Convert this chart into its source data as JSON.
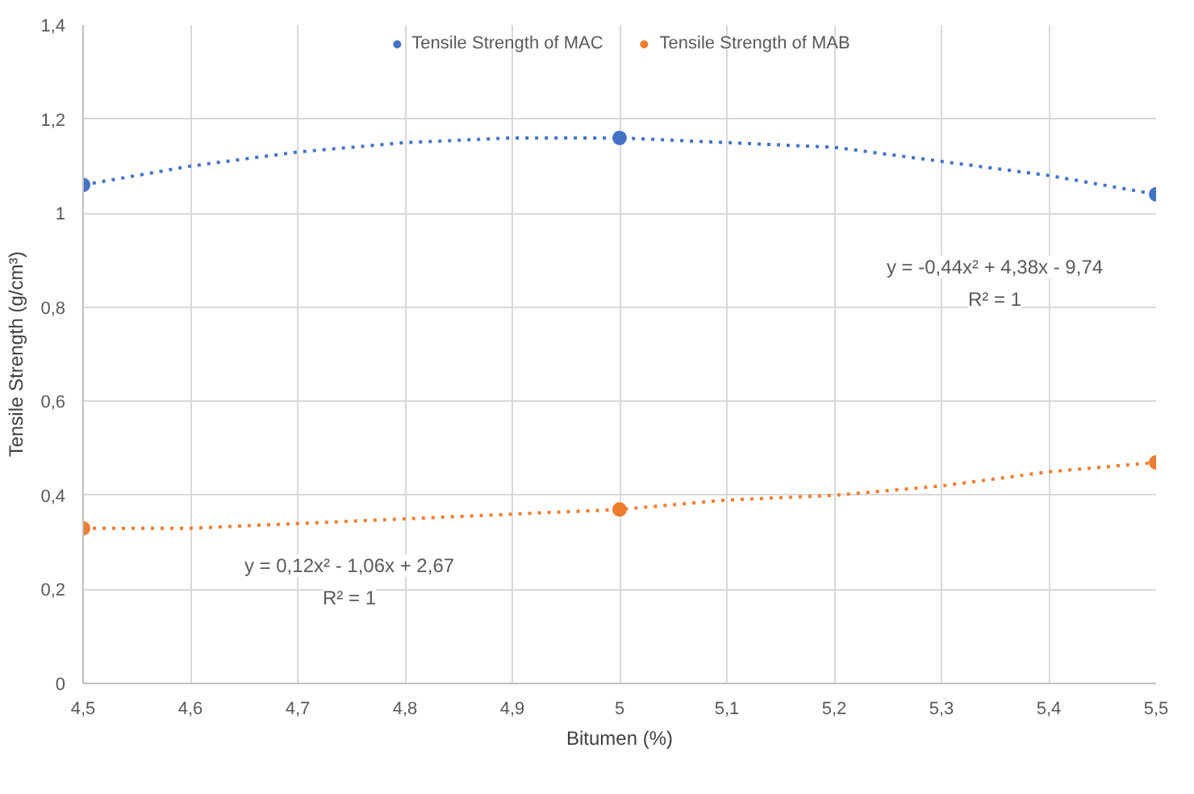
{
  "chart_data": {
    "type": "scatter",
    "xlabel": "Bitumen (%)",
    "ylabel": "Tensile Strength (g/cm³)",
    "x": [
      4.5,
      5,
      5.5
    ],
    "series": [
      {
        "name": "Tensile Strength of MAC",
        "color": "#4472c4",
        "values": [
          1.06,
          1.16,
          1.04
        ],
        "marker": "circle"
      },
      {
        "name": "Tensile Strength of MAB",
        "color": "#ed7d31",
        "values": [
          0.33,
          0.37,
          0.47
        ],
        "marker": "circle"
      },
      {
        "type": "line",
        "color": "#4472c4",
        "line_style": "dotted",
        "x": [
          4.5,
          4.6,
          4.7,
          4.8,
          4.9,
          5.0,
          5.1,
          5.2,
          5.3,
          5.4,
          5.5
        ],
        "values": [
          1.06,
          1.1,
          1.13,
          1.15,
          1.16,
          1.16,
          1.15,
          1.14,
          1.11,
          1.08,
          1.04
        ]
      },
      {
        "type": "line",
        "color": "#ed7d31",
        "line_style": "dotted",
        "x": [
          4.5,
          4.6,
          4.7,
          4.8,
          4.9,
          5.0,
          5.1,
          5.2,
          5.3,
          5.4,
          5.5
        ],
        "values": [
          0.33,
          0.33,
          0.34,
          0.35,
          0.36,
          0.37,
          0.39,
          0.4,
          0.42,
          0.45,
          0.47
        ]
      }
    ],
    "xlim": [
      4.5,
      5.5
    ],
    "xticks": [
      {
        "value": 4.5,
        "label": "4,5"
      },
      {
        "value": 4.6,
        "label": "4,6"
      },
      {
        "value": 4.7,
        "label": "4,7"
      },
      {
        "value": 4.8,
        "label": "4,8"
      },
      {
        "value": 4.9,
        "label": "4,9"
      },
      {
        "value": 5,
        "label": "5"
      },
      {
        "value": 5.1,
        "label": "5,1"
      },
      {
        "value": 5.2,
        "label": "5,2"
      },
      {
        "value": 5.3,
        "label": "5,3"
      },
      {
        "value": 5.4,
        "label": "5,4"
      },
      {
        "value": 5.5,
        "label": "5,5"
      }
    ],
    "ylim": [
      0,
      1.4
    ],
    "yticks": [
      0,
      {
        "value": 0.2,
        "label": "0,2"
      },
      {
        "value": 0.4,
        "label": "0,4"
      },
      {
        "value": 0.6,
        "label": "0,6"
      },
      {
        "value": 0.8,
        "label": "0,8"
      },
      1,
      {
        "value": 1.2,
        "label": "1,2"
      },
      {
        "value": 1.4,
        "label": "1,4"
      }
    ],
    "annotations": [
      "y = -0,44x² + 4,38x - 9,74",
      "R² = 1",
      "y = 0,12x² - 1,06x + 2,67",
      "R² = 1"
    ],
    "grid": true,
    "legend": "top"
  }
}
